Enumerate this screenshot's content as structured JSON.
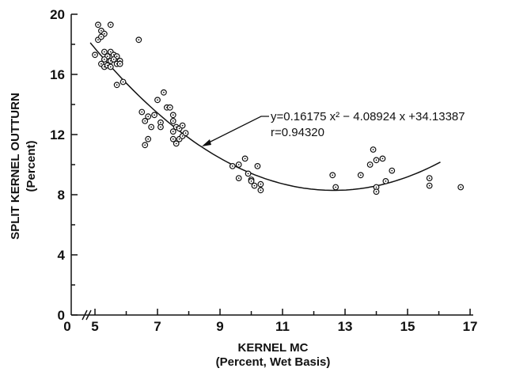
{
  "chart_data": {
    "type": "scatter",
    "xlabel": "KERNEL MC",
    "xlabel_sub": "(Percent, Wet Basis)",
    "ylabel": "SPLIT KERNEL OUTTURN",
    "ylabel_sub": "(Percent)",
    "xaxis_break_label": "0",
    "xlim": [
      4.24,
      17.1
    ],
    "ylim": [
      0,
      20
    ],
    "xticks": [
      5,
      7,
      9,
      11,
      13,
      15,
      17
    ],
    "xminor_ticks": [
      6,
      8,
      10,
      12,
      14,
      16
    ],
    "yticks": [
      0,
      4,
      8,
      12,
      16,
      20
    ],
    "yminor_ticks": [
      2,
      6,
      10,
      14,
      18
    ],
    "color": "#111111",
    "x": [
      5.1,
      5.5,
      5.2,
      5.3,
      5.1,
      5.2,
      5.0,
      5.3,
      5.4,
      5.5,
      5.6,
      5.7,
      5.3,
      5.5,
      5.6,
      5.8,
      5.2,
      5.3,
      5.4,
      5.7,
      5.8,
      5.5,
      5.7,
      5.9,
      6.4,
      6.5,
      6.6,
      6.7,
      6.8,
      6.6,
      6.7,
      7.0,
      7.2,
      7.3,
      7.4,
      6.9,
      7.1,
      7.1,
      7.5,
      7.5,
      7.6,
      7.7,
      7.8,
      7.5,
      7.6,
      7.7,
      7.8,
      7.9,
      7.5,
      9.4,
      9.6,
      9.6,
      9.8,
      9.9,
      10.0,
      10.0,
      10.1,
      10.2,
      10.3,
      10.3,
      12.6,
      12.7,
      13.5,
      13.8,
      13.9,
      14.0,
      14.0,
      14.0,
      14.2,
      14.3,
      14.5,
      15.7,
      15.7,
      16.7
    ],
    "values": [
      19.3,
      19.3,
      18.9,
      18.7,
      18.3,
      18.5,
      17.3,
      17.5,
      17.2,
      17.5,
      17.3,
      17.2,
      17.0,
      16.9,
      17.0,
      16.9,
      16.7,
      16.5,
      16.6,
      16.7,
      16.7,
      16.5,
      15.3,
      15.5,
      18.3,
      13.5,
      12.9,
      13.2,
      12.5,
      11.3,
      11.7,
      14.3,
      14.8,
      13.8,
      13.8,
      13.3,
      12.8,
      12.5,
      13.3,
      12.2,
      12.5,
      12.4,
      12.6,
      11.7,
      11.4,
      11.7,
      11.9,
      12.1,
      12.9,
      9.9,
      10.0,
      9.1,
      10.4,
      9.4,
      9.0,
      8.9,
      8.6,
      9.9,
      8.7,
      8.3,
      9.3,
      8.5,
      9.3,
      10.0,
      11.0,
      10.3,
      8.5,
      8.2,
      10.4,
      8.9,
      9.6,
      9.1,
      8.6,
      8.5
    ],
    "fit": {
      "coefficients": [
        0.16175,
        -4.08924,
        34.13387
      ],
      "range": [
        4.85,
        16.05
      ]
    },
    "annotations": [
      "y=0.16175 x² − 4.08924 x +34.13387",
      "r=0.94320"
    ]
  }
}
